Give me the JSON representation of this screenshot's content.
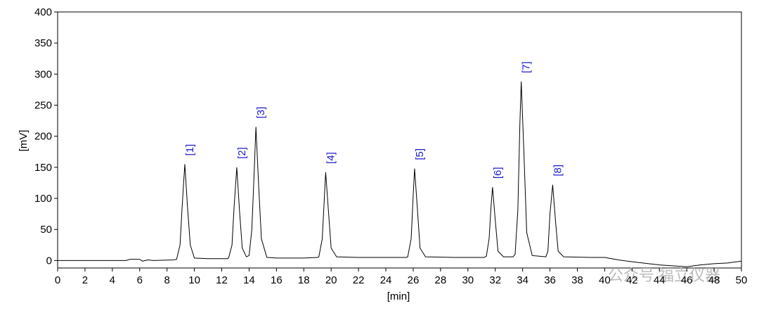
{
  "chart_data": {
    "type": "line",
    "x_label": "[min]",
    "y_label": "[mV]",
    "xlim": [
      0,
      50
    ],
    "xticks": [
      0,
      2,
      4,
      6,
      8,
      10,
      12,
      14,
      16,
      18,
      20,
      22,
      24,
      26,
      28,
      30,
      32,
      34,
      36,
      38,
      40,
      42,
      44,
      46,
      48,
      50
    ],
    "ylim": [
      -12,
      400
    ],
    "yticks": [
      0,
      50,
      100,
      150,
      200,
      250,
      300,
      350,
      400
    ],
    "series": [
      {
        "color": "#000000",
        "x": [
          0,
          5,
          5.3,
          6,
          6.2,
          6.6,
          7,
          8.5,
          8.7,
          8.95,
          9.1,
          9.3,
          9.5,
          9.7,
          10,
          11,
          12.4,
          12.5,
          12.75,
          12.9,
          13.1,
          13.3,
          13.5,
          13.8,
          14.0,
          14.2,
          14.35,
          14.5,
          14.7,
          14.9,
          15.3,
          16,
          18,
          19,
          19.1,
          19.35,
          19.5,
          19.6,
          19.8,
          20.0,
          20.4,
          22,
          25,
          25.5,
          25.6,
          25.85,
          26,
          26.1,
          26.3,
          26.5,
          26.9,
          29,
          31.2,
          31.35,
          31.55,
          31.7,
          31.8,
          32,
          32.2,
          32.6,
          33.3,
          33.45,
          33.65,
          33.8,
          33.9,
          34.1,
          34.3,
          34.7,
          35.7,
          35.85,
          36.0,
          36.2,
          36.4,
          36.6,
          37,
          39,
          40,
          41,
          42,
          44,
          46,
          47,
          48,
          49,
          50
        ],
        "values": [
          0,
          0,
          2,
          2,
          -1,
          1,
          0,
          1,
          2,
          25,
          85,
          155,
          85,
          25,
          4,
          3,
          3,
          4,
          25,
          85,
          150,
          80,
          20,
          6,
          8,
          50,
          130,
          215,
          120,
          35,
          5,
          4,
          4,
          5,
          6,
          35,
          100,
          142,
          80,
          20,
          6,
          5,
          5,
          5,
          6,
          35,
          105,
          148,
          85,
          20,
          6,
          5,
          5,
          7,
          35,
          90,
          118,
          65,
          15,
          6,
          6,
          10,
          80,
          220,
          288,
          170,
          45,
          8,
          6,
          15,
          75,
          122,
          65,
          15,
          6,
          5,
          5,
          1,
          -2,
          -7,
          -10,
          -7,
          -5,
          -4,
          -1
        ]
      }
    ],
    "annotations": [
      {
        "text": "[1]",
        "x": 9.3,
        "y": 155,
        "color": "#1a1acc"
      },
      {
        "text": "[2]",
        "x": 13.1,
        "y": 150,
        "color": "#1a1acc"
      },
      {
        "text": "[3]",
        "x": 14.5,
        "y": 215,
        "color": "#1a1acc"
      },
      {
        "text": "[4]",
        "x": 19.6,
        "y": 142,
        "color": "#1a1acc"
      },
      {
        "text": "[5]",
        "x": 26.1,
        "y": 148,
        "color": "#1a1acc"
      },
      {
        "text": "[6]",
        "x": 31.8,
        "y": 118,
        "color": "#1a1acc"
      },
      {
        "text": "[7]",
        "x": 33.9,
        "y": 288,
        "color": "#1a1acc"
      },
      {
        "text": "[8]",
        "x": 36.2,
        "y": 122,
        "color": "#1a1acc"
      }
    ],
    "watermark": "公众号  福立仪器"
  }
}
